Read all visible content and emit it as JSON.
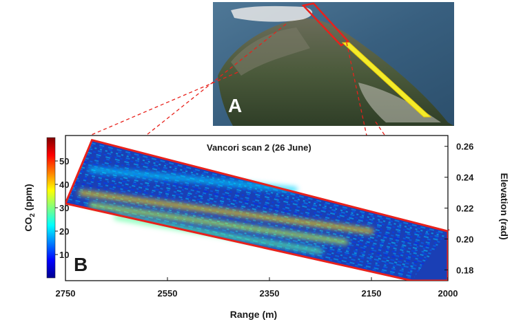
{
  "panel_a": {
    "label": "A"
  },
  "chart_data": {
    "type": "heatmap",
    "title": "Vancori scan 2 (26 June)",
    "panel_label": "B",
    "xlabel": "Range (m)",
    "ylabel": "Elevation (rad)",
    "x_ticks": [
      "2750",
      "2550",
      "2350",
      "2150",
      "2000"
    ],
    "x_tick_values": [
      2750,
      2550,
      2350,
      2150,
      2000
    ],
    "xlim": [
      2750,
      2000
    ],
    "x_reversed": true,
    "y_ticks": [
      "0.26",
      "0.24",
      "0.22",
      "0.20",
      "0.18"
    ],
    "y_tick_values": [
      0.26,
      0.24,
      0.22,
      0.2,
      0.18
    ],
    "ylim": [
      0.173,
      0.267
    ],
    "colorbar": {
      "label": "CO2 (ppm)",
      "label_main": "CO",
      "label_sub": "2",
      "label_unit": " (ppm)",
      "ticks": [
        "50",
        "40",
        "30",
        "20",
        "10"
      ],
      "tick_values": [
        50,
        40,
        30,
        20,
        10
      ],
      "range": [
        0,
        60
      ],
      "colormap": "jet"
    },
    "scan_region_outline": [
      {
        "range": 2750,
        "elevation": 0.223
      },
      {
        "range": 2698,
        "elevation": 0.264
      },
      {
        "range": 2000,
        "elevation": 0.205
      },
      {
        "range": 2000,
        "elevation": 0.173
      },
      {
        "range": 2071,
        "elevation": 0.173
      }
    ],
    "plume_bands": [
      {
        "start": {
          "range": 2720,
          "elevation": 0.23
        },
        "end": {
          "range": 2150,
          "elevation": 0.205
        },
        "level": 40
      },
      {
        "start": {
          "range": 2700,
          "elevation": 0.222
        },
        "end": {
          "range": 2200,
          "elevation": 0.198
        },
        "level": 34
      },
      {
        "start": {
          "range": 2650,
          "elevation": 0.214
        },
        "end": {
          "range": 2250,
          "elevation": 0.192
        },
        "level": 28
      },
      {
        "start": {
          "range": 2700,
          "elevation": 0.245
        },
        "end": {
          "range": 2300,
          "elevation": 0.232
        },
        "level": 20
      }
    ],
    "colors": {
      "outline": "#e8211b",
      "background_level": "#1a3fb5",
      "axis": "#111111"
    }
  }
}
